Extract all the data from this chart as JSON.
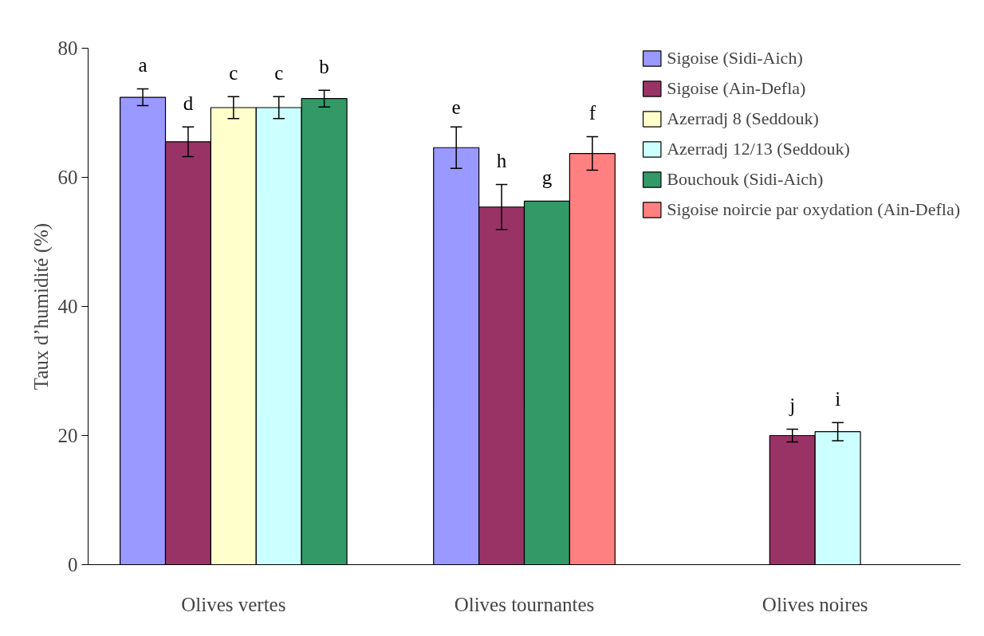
{
  "chart_data": {
    "type": "bar",
    "ylabel": "Taux d’humidité (%)",
    "categories": [
      "Olives vertes",
      "Olives tournantes",
      "Olives noires"
    ],
    "ylim": [
      0,
      80
    ],
    "yticks": [
      0,
      20,
      40,
      60,
      80
    ],
    "grid": false,
    "legend": "top right",
    "series": [
      {
        "name": "Sigoise (Sidi-Aich)",
        "color": "#9999ff",
        "values": [
          72.4,
          64.6,
          null
        ],
        "errors": [
          1.3,
          3.2,
          null
        ],
        "value_labels": [
          "a",
          "e",
          null
        ]
      },
      {
        "name": "Sigoise (Ain-Defla)",
        "color": "#993366",
        "values": [
          65.5,
          55.4,
          20.0
        ],
        "errors": [
          2.3,
          3.5,
          1.0
        ],
        "value_labels": [
          "d",
          "h",
          "j"
        ]
      },
      {
        "name": "Azerradj 8 (Seddouk)",
        "color": "#ffffcc",
        "values": [
          70.8,
          null,
          null
        ],
        "errors": [
          1.7,
          null,
          null
        ],
        "value_labels": [
          "c",
          null,
          null
        ]
      },
      {
        "name": "Azerradj 12/13 (Seddouk)",
        "color": "#ccffff",
        "values": [
          70.8,
          null,
          20.6
        ],
        "errors": [
          1.7,
          null,
          1.4
        ],
        "value_labels": [
          "c",
          null,
          "i"
        ]
      },
      {
        "name": "Bouchouk (Sidi-Aich)",
        "color": "#339966",
        "values": [
          72.2,
          56.3,
          null
        ],
        "errors": [
          1.3,
          null,
          null
        ],
        "value_labels": [
          "b",
          "g",
          null
        ]
      },
      {
        "name": "Sigoise noircie par oxydation (Ain-Defla)",
        "color": "#ff8080",
        "values": [
          null,
          63.7,
          null
        ],
        "errors": [
          null,
          2.6,
          null
        ],
        "value_labels": [
          null,
          "f",
          null
        ]
      }
    ]
  }
}
